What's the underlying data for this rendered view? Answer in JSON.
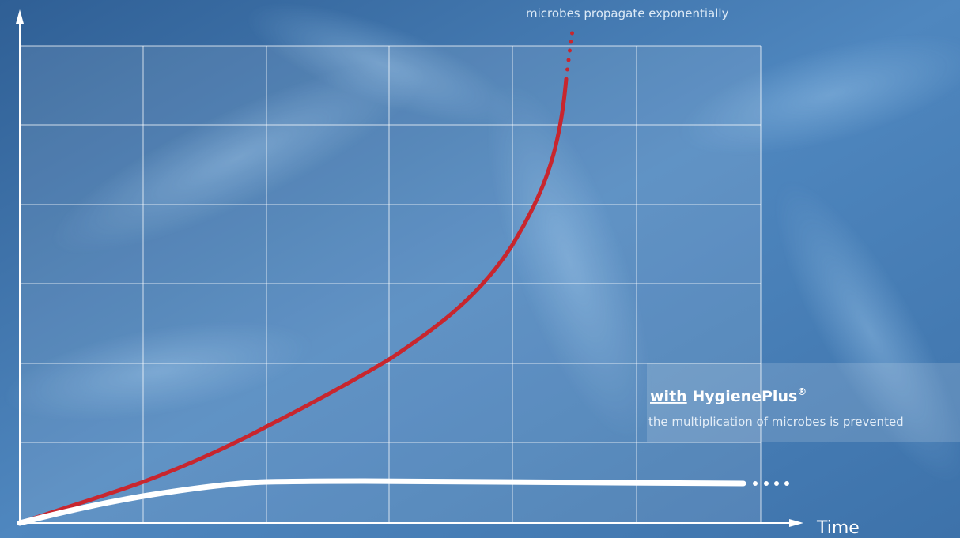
{
  "top_note": "microbes propagate exponentially",
  "x_axis_label": "Time",
  "callout": {
    "with": "with",
    "brand": "HygienePlus",
    "mark": "®",
    "text": "the multiplication of microbes is prevented"
  }
}
